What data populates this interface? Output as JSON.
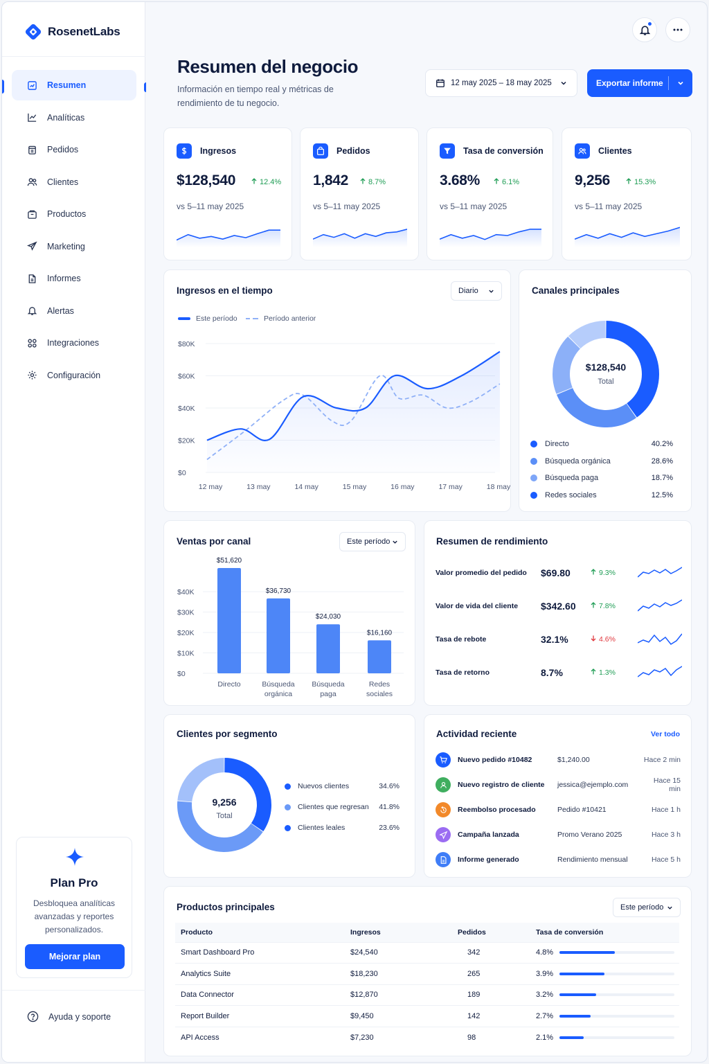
{
  "brand": {
    "name": "RosenetLabs"
  },
  "nav": [
    {
      "label": "Resumen",
      "icon": "dashboard-icon",
      "active": true
    },
    {
      "label": "Analíticas",
      "icon": "analytics-icon"
    },
    {
      "label": "Pedidos",
      "icon": "orders-icon"
    },
    {
      "label": "Clientes",
      "icon": "users-icon"
    },
    {
      "label": "Productos",
      "icon": "box-icon"
    },
    {
      "label": "Marketing",
      "icon": "megaphone-icon"
    },
    {
      "label": "Informes",
      "icon": "report-icon"
    },
    {
      "label": "Alertas",
      "icon": "bell-icon"
    },
    {
      "label": "Integraciones",
      "icon": "grid-icon"
    },
    {
      "label": "Configuración",
      "icon": "gear-icon"
    }
  ],
  "pro": {
    "title": "Plan Pro",
    "description": "Desbloquea analíticas avanzadas y reportes personalizados.",
    "button": "Mejorar plan"
  },
  "help": {
    "label": "Ayuda y soporte"
  },
  "header": {
    "title": "Resumen del negocio",
    "subtitle": "Información en tiempo real y métricas de rendimiento de tu negocio.",
    "date_range": "12 may 2025 – 18 may 2025",
    "export": "Exportar informe"
  },
  "kpis": [
    {
      "label": "Ingresos",
      "value": "$128,540",
      "delta": "12.4%",
      "compare": "vs 5–11 may 2025",
      "icon": "dollar-icon"
    },
    {
      "label": "Pedidos",
      "value": "1,842",
      "delta": "8.7%",
      "compare": "vs 5–11 may 2025",
      "icon": "bag-icon"
    },
    {
      "label": "Tasa de conversión",
      "value": "3.68%",
      "delta": "6.1%",
      "compare": "vs 5–11 may 2025",
      "icon": "funnel-icon"
    },
    {
      "label": "Clientes",
      "value": "9,256",
      "delta": "15.3%",
      "compare": "vs 5–11 may 2025",
      "icon": "users-icon"
    }
  ],
  "revenue_chart": {
    "title": "Ingresos en el tiempo",
    "select": "Diario",
    "legend_current": "Este período",
    "legend_previous": "Período anterior"
  },
  "channels": {
    "title": "Canales principales",
    "total_value": "$128,540",
    "total_label": "Total",
    "items": [
      {
        "name": "Directo",
        "pct": "40.2%",
        "color": "#1a5cff"
      },
      {
        "name": "Búsqueda orgánica",
        "pct": "28.6%",
        "color": "#5b8ff7"
      },
      {
        "name": "Búsqueda paga",
        "pct": "18.7%",
        "color": "#7ea6f8"
      },
      {
        "name": "Redes sociales",
        "pct": "12.5%",
        "color": "#1a5cff"
      }
    ]
  },
  "sales_channel": {
    "title": "Ventas por canal",
    "select": "Este período"
  },
  "performance": {
    "title": "Resumen de rendimiento",
    "rows": [
      {
        "label": "Valor promedio del pedido",
        "value": "$69.80",
        "delta": "9.3%",
        "dir": "up"
      },
      {
        "label": "Valor de vida del cliente",
        "value": "$342.60",
        "delta": "7.8%",
        "dir": "up"
      },
      {
        "label": "Tasa de rebote",
        "value": "32.1%",
        "delta": "4.6%",
        "dir": "down"
      },
      {
        "label": "Tasa de retorno",
        "value": "8.7%",
        "delta": "1.3%",
        "dir": "up"
      }
    ]
  },
  "segments": {
    "title": "Clientes por segmento",
    "total_value": "9,256",
    "total_label": "Total",
    "items": [
      {
        "name": "Nuevos clientes",
        "pct": "34.6%",
        "color": "#1a5cff"
      },
      {
        "name": "Clientes que regresan",
        "pct": "41.8%",
        "color": "#6b9af7"
      },
      {
        "name": "Clientes leales",
        "pct": "23.6%",
        "color": "#1a5cff"
      }
    ]
  },
  "activity": {
    "title": "Actividad reciente",
    "link": "Ver todo",
    "items": [
      {
        "title": "Nuevo pedido #10482",
        "detail": "$1,240.00",
        "time": "Hace 2 min",
        "icon": "cart-icon",
        "color": "#1a5cff"
      },
      {
        "title": "Nuevo registro de cliente",
        "detail": "jessica@ejemplo.com",
        "time": "Hace 15 min",
        "icon": "user-icon",
        "color": "#3fae5f"
      },
      {
        "title": "Reembolso procesado",
        "detail": "Pedido #10421",
        "time": "Hace 1 h",
        "icon": "refund-icon",
        "color": "#f2892a"
      },
      {
        "title": "Campaña lanzada",
        "detail": "Promo Verano 2025",
        "time": "Hace 3 h",
        "icon": "megaphone-icon",
        "color": "#9b6cf2"
      },
      {
        "title": "Informe generado",
        "detail": "Rendimiento mensual",
        "time": "Hace 5 h",
        "icon": "report-icon",
        "color": "#3f7df7"
      }
    ]
  },
  "products": {
    "title": "Productos principales",
    "select": "Este período",
    "columns": [
      "Producto",
      "Ingresos",
      "Pedidos",
      "Tasa de conversión"
    ],
    "rows": [
      {
        "name": "Smart Dashboard Pro",
        "revenue": "$24,540",
        "orders": "342",
        "conv": "4.8%",
        "conv_value": 4.8
      },
      {
        "name": "Analytics Suite",
        "revenue": "$18,230",
        "orders": "265",
        "conv": "3.9%",
        "conv_value": 3.9
      },
      {
        "name": "Data Connector",
        "revenue": "$12,870",
        "orders": "189",
        "conv": "3.2%",
        "conv_value": 3.2
      },
      {
        "name": "Report Builder",
        "revenue": "$9,450",
        "orders": "142",
        "conv": "2.7%",
        "conv_value": 2.7
      },
      {
        "name": "API Access",
        "revenue": "$7,230",
        "orders": "98",
        "conv": "2.1%",
        "conv_value": 2.1
      }
    ]
  },
  "chart_data": [
    {
      "type": "line",
      "title": "Ingresos en el tiempo",
      "x": [
        "12 may",
        "13 may",
        "14 may",
        "15 may",
        "16 may",
        "17 may",
        "18 may"
      ],
      "yticks": [
        "$0",
        "$20K",
        "$40K",
        "$60K",
        "$80K"
      ],
      "ylim": [
        0,
        80000
      ],
      "grid": true,
      "legend": "top-left",
      "series": [
        {
          "name": "Este período",
          "style": "solid",
          "color": "#1a5cff",
          "points": [
            [
              0,
              20000
            ],
            [
              0.7,
              27000
            ],
            [
              1.3,
              20500
            ],
            [
              2,
              47000
            ],
            [
              2.7,
              40000
            ],
            [
              3.3,
              40000
            ],
            [
              3.9,
              60000
            ],
            [
              4.6,
              52000
            ],
            [
              5.3,
              60000
            ],
            [
              6.1,
              75000
            ]
          ]
        },
        {
          "name": "Período anterior",
          "style": "dashed",
          "color": "#8fb0f7",
          "points": [
            [
              0,
              8000
            ],
            [
              0.8,
              26000
            ],
            [
              1.6,
              45000
            ],
            [
              2,
              48000
            ],
            [
              2.6,
              32000
            ],
            [
              3,
              32000
            ],
            [
              3.6,
              60000
            ],
            [
              4,
              46000
            ],
            [
              4.5,
              48000
            ],
            [
              5,
              40000
            ],
            [
              5.5,
              44000
            ],
            [
              6.1,
              55000
            ]
          ]
        }
      ]
    },
    {
      "type": "pie",
      "title": "Canales principales",
      "categories": [
        "Directo",
        "Búsqueda orgánica",
        "Búsqueda paga",
        "Redes sociales"
      ],
      "values": [
        40.2,
        28.6,
        18.7,
        12.5
      ],
      "colors": [
        "#1a5cff",
        "#5b8ff7",
        "#8cb0f8",
        "#b6cdfb"
      ]
    },
    {
      "type": "bar",
      "title": "Ventas por canal",
      "categories": [
        "Directo",
        "Búsqueda orgánica",
        "Búsqueda paga",
        "Redes sociales"
      ],
      "category_lines": [
        [
          "Directo"
        ],
        [
          "Búsqueda",
          "orgánica"
        ],
        [
          "Búsqueda",
          "paga"
        ],
        [
          "Redes",
          "sociales"
        ]
      ],
      "values": [
        51620,
        36730,
        24030,
        16160
      ],
      "value_labels": [
        "$51,620",
        "$36,730",
        "$24,030",
        "$16,160"
      ],
      "yticks": [
        "$0",
        "$10K",
        "$20K",
        "$30K",
        "$40K"
      ],
      "ylim": [
        0,
        55000
      ],
      "color": "#4d86f7"
    },
    {
      "type": "pie",
      "title": "Clientes por segmento",
      "categories": [
        "Nuevos clientes",
        "Clientes que regresan",
        "Clientes leales"
      ],
      "values": [
        34.6,
        41.8,
        23.6
      ],
      "colors": [
        "#1a5cff",
        "#6b9af7",
        "#a3c0fa"
      ]
    }
  ]
}
